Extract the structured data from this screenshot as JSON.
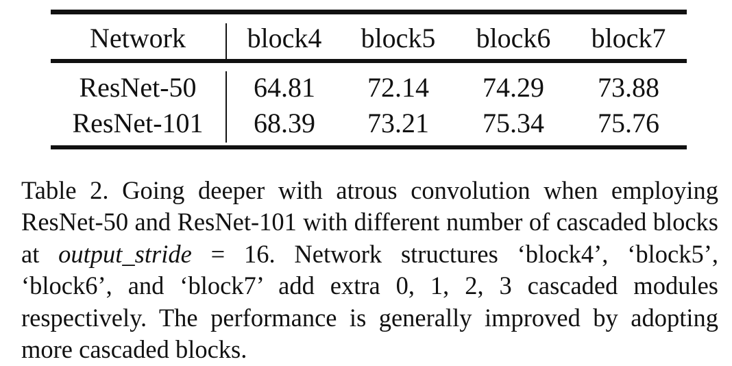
{
  "table": {
    "headers": [
      "Network",
      "block4",
      "block5",
      "block6",
      "block7"
    ],
    "rows": [
      [
        "ResNet-50",
        "64.81",
        "72.14",
        "74.29",
        "73.88"
      ],
      [
        "ResNet-101",
        "68.39",
        "73.21",
        "75.34",
        "75.76"
      ]
    ]
  },
  "caption": {
    "part1": "Table 2. Going deeper with atrous convolution when employ­ing ResNet-50 and ResNet-101 with different number of cas­caded blocks at ",
    "emph": "output_stride",
    "part2": " = 16. Network structures ‘block4’, ‘block5’, ‘block6’, and ‘block7’ add extra 0, 1, 2, 3 cascaded modules respectively. The performance is generally improved by adopting more cascaded blocks."
  }
}
